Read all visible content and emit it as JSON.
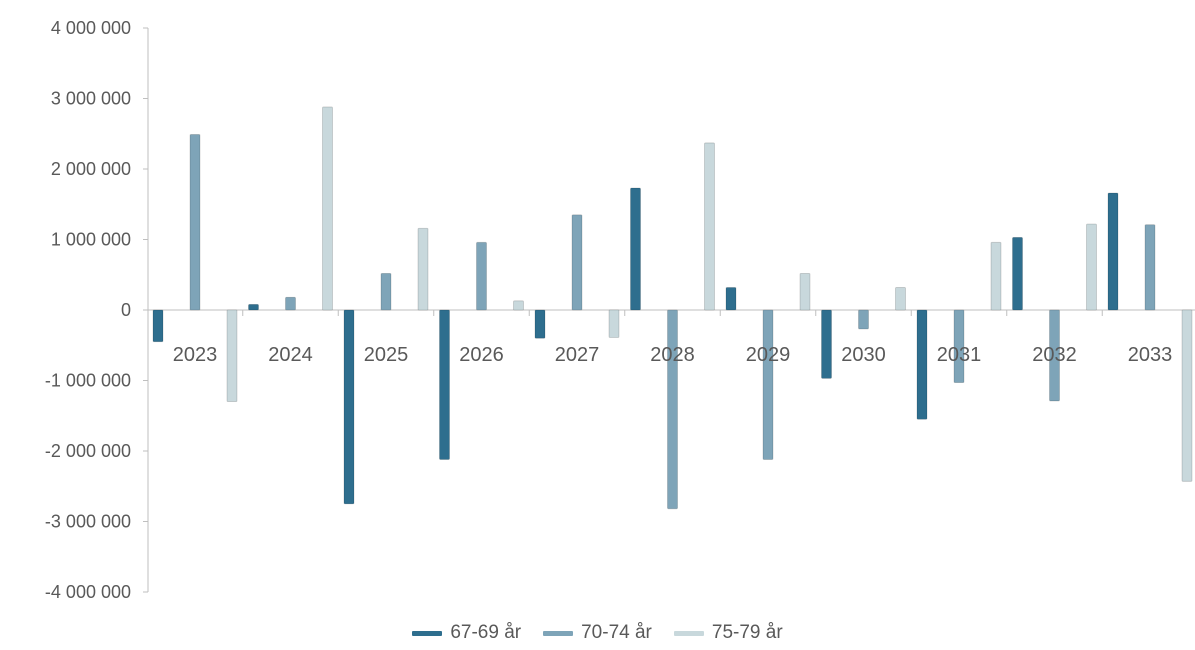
{
  "chart_data": {
    "type": "bar",
    "categories": [
      "2023",
      "2024",
      "2025",
      "2026",
      "2027",
      "2028",
      "2029",
      "2030",
      "2031",
      "2032",
      "2033"
    ],
    "series": [
      {
        "name": "67-69 år",
        "color": "#2e6e8e",
        "values": [
          -450000,
          80000,
          -2750000,
          -2120000,
          -400000,
          1730000,
          320000,
          -970000,
          -1550000,
          1030000,
          1660000
        ]
      },
      {
        "name": "70-74 år",
        "color": "#7ea4b8",
        "values": [
          2490000,
          180000,
          520000,
          960000,
          1350000,
          -2820000,
          -2120000,
          -270000,
          -1030000,
          -1290000,
          1210000
        ]
      },
      {
        "name": "75-79 år",
        "color": "#c8d8dc",
        "values": [
          -1300000,
          2880000,
          1160000,
          130000,
          -390000,
          2370000,
          520000,
          320000,
          960000,
          1220000,
          -2430000
        ]
      }
    ],
    "ylim": [
      -4000000,
      4000000
    ],
    "yticks": [
      4000000,
      3000000,
      2000000,
      1000000,
      0,
      -1000000,
      -2000000,
      -3000000,
      -4000000
    ],
    "ytick_labels": [
      "4 000 000",
      "3 000 000",
      "2 000 000",
      "1 000 000",
      "0",
      "-1 000 000",
      "-2 000 000",
      "-3 000 000",
      "-4 000 000"
    ],
    "grid": false,
    "legend_position": "bottom-center",
    "title": "",
    "xlabel": "",
    "ylabel": ""
  }
}
